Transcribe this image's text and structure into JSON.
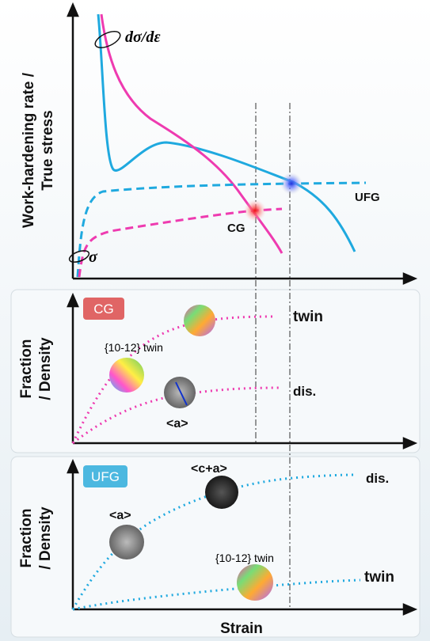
{
  "top_panel": {
    "y_label": [
      "Work-hardening rate /",
      "True stress"
    ],
    "rate_label": "dσ/dε",
    "stress_label": "σ",
    "curve_labels": [
      "UFG",
      "CG"
    ]
  },
  "cg_panel": {
    "badge": "CG",
    "y_label": [
      "Fraction",
      "/ Density"
    ],
    "labels": [
      "twin",
      "{10-12} twin",
      "dis.",
      "<a>"
    ]
  },
  "ufg_panel": {
    "badge": "UFG",
    "y_label": [
      "Fraction",
      "/ Density"
    ],
    "labels": [
      "<c+a>",
      "dis.",
      "<a>",
      "{10-12} twin",
      "twin"
    ]
  },
  "x_label": "Strain"
}
